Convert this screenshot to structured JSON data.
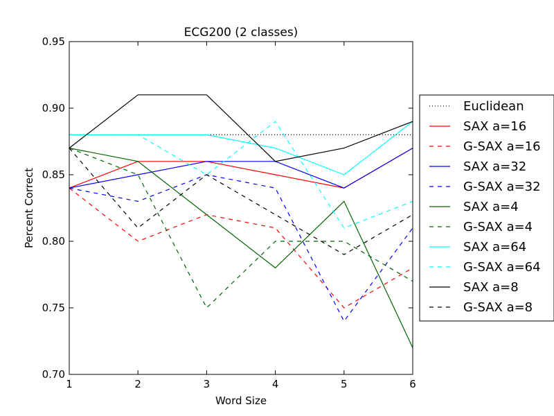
{
  "chart_data": {
    "type": "line",
    "title": "ECG200 (2 classes)",
    "xlabel": "Word Size",
    "ylabel": "Percent Correct",
    "x": [
      1,
      2,
      3,
      4,
      5,
      6
    ],
    "xlim": [
      1,
      6
    ],
    "ylim": [
      0.7,
      0.95
    ],
    "x_ticks": [
      "1",
      "2",
      "3",
      "4",
      "5",
      "6"
    ],
    "y_ticks": [
      "0.70",
      "0.75",
      "0.80",
      "0.85",
      "0.90",
      "0.95"
    ],
    "grid": false,
    "legend_position": "right, outside plot",
    "series": [
      {
        "name": "Euclidean",
        "values": [
          0.88,
          0.88,
          0.88,
          0.88,
          0.88,
          0.88
        ],
        "color": "#000000",
        "style": "dotted"
      },
      {
        "name": "SAX a=16",
        "values": [
          0.84,
          0.86,
          0.86,
          0.85,
          0.84,
          0.87
        ],
        "color": "#ff0000",
        "style": "solid"
      },
      {
        "name": "G-SAX a=16",
        "values": [
          0.84,
          0.8,
          0.82,
          0.81,
          0.75,
          0.78
        ],
        "color": "#ff0000",
        "style": "dashed"
      },
      {
        "name": "SAX a=32",
        "values": [
          0.84,
          0.85,
          0.86,
          0.86,
          0.84,
          0.87
        ],
        "color": "#0000ff",
        "style": "solid"
      },
      {
        "name": "G-SAX a=32",
        "values": [
          0.84,
          0.83,
          0.85,
          0.84,
          0.74,
          0.81
        ],
        "color": "#0000ff",
        "style": "dashed"
      },
      {
        "name": "SAX a=4",
        "values": [
          0.87,
          0.86,
          0.82,
          0.78,
          0.83,
          0.72
        ],
        "color": "#006400",
        "style": "solid"
      },
      {
        "name": "G-SAX a=4",
        "values": [
          0.87,
          0.85,
          0.75,
          0.8,
          0.8,
          0.77
        ],
        "color": "#006400",
        "style": "dashed"
      },
      {
        "name": "SAX a=64",
        "values": [
          0.88,
          0.88,
          0.88,
          0.87,
          0.85,
          0.89
        ],
        "color": "#00ffff",
        "style": "solid"
      },
      {
        "name": "G-SAX a=64",
        "values": [
          0.88,
          0.88,
          0.85,
          0.89,
          0.81,
          0.83
        ],
        "color": "#00ffff",
        "style": "dashed"
      },
      {
        "name": "SAX a=8",
        "values": [
          0.87,
          0.91,
          0.91,
          0.86,
          0.87,
          0.89
        ],
        "color": "#000000",
        "style": "solid"
      },
      {
        "name": "G-SAX a=8",
        "values": [
          0.87,
          0.81,
          0.85,
          0.82,
          0.79,
          0.82
        ],
        "color": "#000000",
        "style": "dashed"
      }
    ]
  }
}
